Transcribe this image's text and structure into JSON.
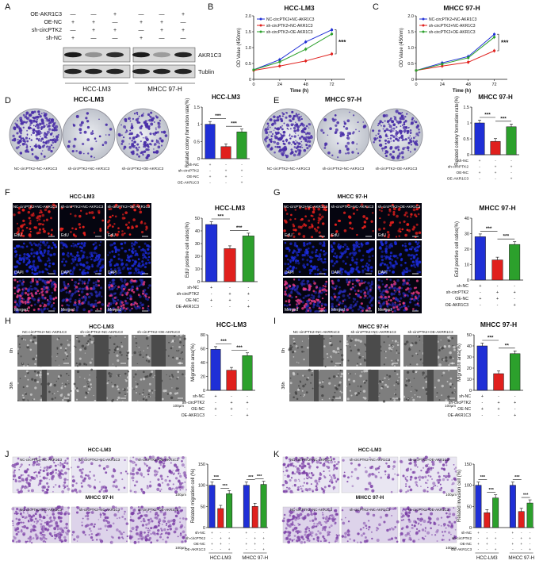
{
  "panel_letters": [
    "A",
    "B",
    "C",
    "D",
    "E",
    "F",
    "G",
    "H",
    "I",
    "J",
    "K"
  ],
  "western": {
    "row_labels": [
      "OE-AKR1C3",
      "OE-NC",
      "sh-circPTK2",
      "sh-NC"
    ],
    "signs": [
      [
        "—",
        "—",
        "+",
        "—",
        "—",
        "+"
      ],
      [
        "+",
        "+",
        "—",
        "+",
        "+",
        "—"
      ],
      [
        "—",
        "+",
        "+",
        "—",
        "+",
        "+"
      ],
      [
        "+",
        "—",
        "—",
        "+",
        "—",
        "—"
      ]
    ],
    "band_labels": [
      "AKR1C3",
      "Tublin"
    ],
    "groups": [
      "HCC-LM3",
      "MHCC 97-H"
    ]
  },
  "legend_names": [
    "NC-circPTK2+NC-AKR1C3",
    "sh-circPTK2+NC-AKR1C3",
    "sh-circPTK2+OE-AKR1C3"
  ],
  "legend_colors": [
    "#1f2fd6",
    "#e0201d",
    "#2ca02c"
  ],
  "line_ylabel": "OD Value (450nm)",
  "line_xlabel": "Time (h)",
  "sig": "***",
  "sig2": "**",
  "colony": {
    "titles": [
      "HCC-LM3",
      "MHCC 97-H"
    ],
    "captions": [
      "NC-circPTK2+NC-AKR1C3",
      "sh-circPTK2+NC-AKR1C3",
      "sh-circPTK2+OE-AKR1C3"
    ],
    "ylabel": "Related colony formation rate(%)"
  },
  "edu": {
    "titles": [
      "HCC-LM3",
      "MHCC 97-H"
    ],
    "col_captions": [
      "NC-circPTK2+NC-AKR1C3",
      "sh-circPTK2+NC-AKR1C3",
      "sh-circPTK2+OE-AKR1C3"
    ],
    "row_labels": [
      "EdU",
      "DAPI",
      "Merged"
    ],
    "ylabel": "EdU positive cell ratios(%)"
  },
  "migration": {
    "titles": [
      "HCC-LM3",
      "MHCC 97-H"
    ],
    "captions_h": [
      "NC-circPTK2+NC-AKR1C3",
      "sh-circPTK2+NC-AKR1C3",
      "sh-circPTK2+OE-AKR1C3"
    ],
    "captions_i": [
      "NC-circPTK2+NC-AKRR1C3",
      "sh-circPTK2+NC-AKRR1C3",
      "sh-circPTK2+OE-AKRR1C3"
    ],
    "time_labels": [
      "0h",
      "36h"
    ],
    "ylabel": "Migration area(%)",
    "scale": "100μm"
  },
  "transwell": {
    "lines": [
      "HCC-LM3",
      "MHCC 97-H"
    ],
    "captions": [
      "NC-circPTK2+NC-AKR1C3",
      "sh-circPTK2+NC-AKR1C3",
      "sh-circPTK2+OE-AKR1C3"
    ],
    "ylabel_j": "Related migration cell (%)",
    "ylabel_k": "Related invasion cell (%)",
    "scale": "100μm"
  },
  "treat_labels": [
    "sh-NC",
    "sh-circPTK2",
    "OE-NC",
    "OE-AKR1C3"
  ],
  "treat_signs": [
    [
      "+",
      "-",
      "-"
    ],
    [
      "-",
      "+",
      "+"
    ],
    [
      "+",
      "+",
      "-"
    ],
    [
      "-",
      "-",
      "+"
    ]
  ],
  "chart_data": [
    {
      "id": "B",
      "type": "line",
      "title": "HCC-LM3",
      "xlabel": "Time (h)",
      "ylabel": "OD Value (450nm)",
      "x": [
        0,
        24,
        48,
        72
      ],
      "xlim": [
        0,
        84
      ],
      "ylim": [
        0,
        2.0
      ],
      "yticks": [
        0,
        0.5,
        1.0,
        1.5,
        2.0
      ],
      "series": [
        {
          "name": "NC-circPTK2+NC-AKR1C3",
          "values": [
            0.3,
            0.62,
            1.18,
            1.56
          ]
        },
        {
          "name": "sh-circPTK2+NC-AKR1C3",
          "values": [
            0.28,
            0.42,
            0.58,
            0.8
          ]
        },
        {
          "name": "sh-circPTK2+OE-AKR1C3",
          "values": [
            0.3,
            0.55,
            0.95,
            1.43
          ]
        }
      ]
    },
    {
      "id": "C",
      "type": "line",
      "title": "MHCC 97-H",
      "xlabel": "Time (h)",
      "ylabel": "OD Value (450nm)",
      "x": [
        0,
        24,
        48,
        72
      ],
      "xlim": [
        0,
        84
      ],
      "ylim": [
        0,
        2.0
      ],
      "yticks": [
        0,
        0.5,
        1.0,
        1.5,
        2.0
      ],
      "series": [
        {
          "name": "NC-circPTK2+NC-AKR1C3",
          "values": [
            0.28,
            0.52,
            0.72,
            1.42
          ]
        },
        {
          "name": "sh-circPTK2+NC-AKR1C3",
          "values": [
            0.28,
            0.42,
            0.54,
            0.9
          ]
        },
        {
          "name": "sh-circPTK2+OE-AKR1C3",
          "values": [
            0.28,
            0.48,
            0.68,
            1.33
          ]
        }
      ]
    },
    {
      "id": "D",
      "type": "bar",
      "title": "HCC-LM3",
      "ylabel": "Related colony formation rate(%)",
      "values": [
        1.0,
        0.35,
        0.78
      ],
      "ylim": [
        0,
        1.5
      ],
      "yticks": [
        0,
        0.5,
        1.0,
        1.5
      ]
    },
    {
      "id": "E",
      "type": "bar",
      "title": "MHCC 97-H",
      "ylabel": "Related colony formation rate(%)",
      "values": [
        1.0,
        0.42,
        0.88
      ],
      "ylim": [
        0,
        1.5
      ],
      "yticks": [
        0,
        0.5,
        1.0,
        1.5
      ]
    },
    {
      "id": "F",
      "type": "bar",
      "title": "HCC-LM3",
      "ylabel": "EdU positive cell ratios(%)",
      "values": [
        45,
        26,
        36
      ],
      "ylim": [
        0,
        50
      ],
      "yticks": [
        0,
        10,
        20,
        30,
        40,
        50
      ]
    },
    {
      "id": "G",
      "type": "bar",
      "title": "MHCC 97-H",
      "ylabel": "EdU positive cell ratios(%)",
      "values": [
        28,
        13,
        23
      ],
      "ylim": [
        0,
        40
      ],
      "yticks": [
        0,
        10,
        20,
        30,
        40
      ]
    },
    {
      "id": "H",
      "type": "bar",
      "title": "HCC-LM3",
      "ylabel": "Migration area(%)",
      "values": [
        59,
        29,
        50
      ],
      "ylim": [
        0,
        80
      ],
      "yticks": [
        0,
        20,
        40,
        60,
        80
      ]
    },
    {
      "id": "I",
      "type": "bar",
      "title": "MHCC 97-H",
      "ylabel": "Migration area(%)",
      "values": [
        40,
        15,
        33
      ],
      "ylim": [
        0,
        50
      ],
      "yticks": [
        0,
        10,
        20,
        30,
        40,
        50
      ]
    },
    {
      "id": "J",
      "type": "bar",
      "title": "",
      "ylabel": "Related migration cell (%)",
      "groups": [
        "HCC-LM3",
        "MHCC 97-H"
      ],
      "values": [
        100,
        45,
        80,
        100,
        50,
        102
      ],
      "ylim": [
        0,
        150
      ],
      "yticks": [
        0,
        50,
        100,
        150
      ]
    },
    {
      "id": "K",
      "type": "bar",
      "title": "",
      "ylabel": "Related invasion cell (%)",
      "groups": [
        "HCC-LM3",
        "MHCC 97-H"
      ],
      "values": [
        100,
        35,
        70,
        100,
        38,
        58
      ],
      "ylim": [
        0,
        150
      ],
      "yticks": [
        0,
        50,
        100,
        150
      ]
    }
  ]
}
